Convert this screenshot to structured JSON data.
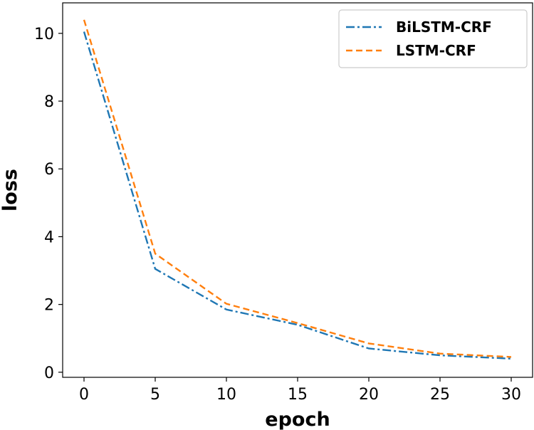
{
  "chart_data": {
    "type": "line",
    "x": [
      0,
      5,
      10,
      15,
      20,
      25,
      30
    ],
    "series": [
      {
        "name": "BiLSTM-CRF",
        "values": [
          10.05,
          3.05,
          1.85,
          1.4,
          0.7,
          0.5,
          0.4
        ],
        "color": "#1f77b4",
        "dash": "dash-dot"
      },
      {
        "name": "LSTM-CRF",
        "values": [
          10.4,
          3.5,
          2.02,
          1.45,
          0.85,
          0.55,
          0.45
        ],
        "color": "#ff7f0e",
        "dash": "dashed"
      }
    ],
    "xlabel": "epoch",
    "ylabel": "loss",
    "xlim": [
      -1.5,
      31.5
    ],
    "ylim": [
      -0.15,
      10.9
    ],
    "xticks": [
      "0",
      "5",
      "10",
      "15",
      "20",
      "25",
      "30"
    ],
    "yticks": [
      "0",
      "2",
      "4",
      "6",
      "8",
      "10"
    ],
    "grid": false,
    "legend_position": "top-right"
  }
}
